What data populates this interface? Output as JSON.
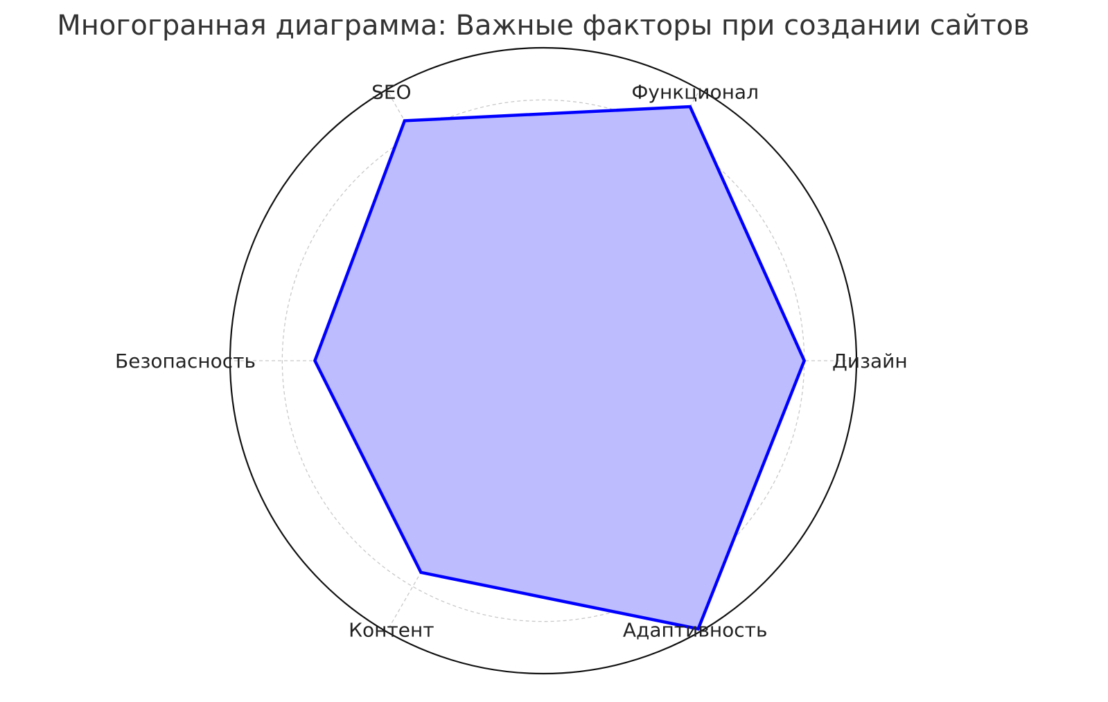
{
  "chart_data": {
    "type": "radar",
    "title": "Многогранная диаграмма: Важные факторы при создании сайтов",
    "categories": [
      "Дизайн",
      "Функционал",
      "SEO",
      "Безопасность",
      "Контент",
      "Адаптивность"
    ],
    "series": [
      {
        "values": [
          8,
          9,
          8.5,
          7,
          7.5,
          9.5
        ]
      }
    ],
    "rlim": [
      0,
      9.6
    ],
    "grid_values": [
      2,
      4,
      6,
      8
    ],
    "grid": true,
    "colors": {
      "line": "#0000ff",
      "fill": "#bcbcff",
      "grid": "#c8c8c8",
      "frame": "#111111"
    }
  }
}
